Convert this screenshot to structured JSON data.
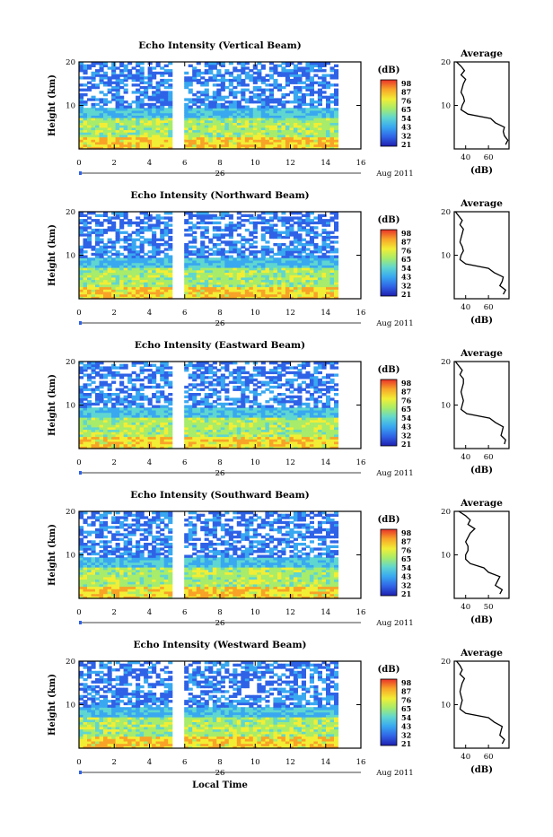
{
  "figure": {
    "xlabel": "Local Time",
    "date_label": "Aug 2011",
    "day_label": "26",
    "ylabel": "Height (km)",
    "unit_label": "(dB)",
    "avg_title": "Average",
    "avg_xlabel": "(dB)"
  },
  "chart_data": [
    {
      "type": "heatmap",
      "title": "Echo Intensity (Vertical Beam)",
      "x_ticks": [
        "0",
        "2",
        "4",
        "6",
        "8",
        "10",
        "12",
        "14",
        "16"
      ],
      "xlim": [
        0,
        16
      ],
      "y_ticks": [
        "10",
        "20"
      ],
      "ylim": [
        0,
        20
      ],
      "data_gap_hours": [
        5.5,
        5.8
      ],
      "data_end_hour": 14.7,
      "colorbar_ticks": [
        "98",
        "87",
        "76",
        "65",
        "54",
        "43",
        "32",
        "21"
      ],
      "colorbar_range": [
        21,
        98
      ],
      "colormap": [
        "#1f1fb0",
        "#2f62e6",
        "#39a8f0",
        "#5fd6d0",
        "#a7ec6a",
        "#f2ee35",
        "#f8a328",
        "#e8322a"
      ],
      "average_profile": {
        "x_ticks": [
          "40",
          "60"
        ],
        "y_ticks": [
          "10",
          "20"
        ],
        "height_km": [
          1,
          2,
          3,
          4,
          5,
          6,
          7,
          8,
          9,
          10,
          11,
          12,
          13,
          14,
          15,
          16,
          17,
          18,
          19,
          20
        ],
        "db": [
          75,
          77,
          74,
          73,
          74,
          66,
          62,
          42,
          36,
          37,
          39,
          38,
          36,
          37,
          38,
          40,
          36,
          39,
          36,
          32
        ]
      }
    },
    {
      "type": "heatmap",
      "title": "Echo Intensity (Northward Beam)",
      "x_ticks": [
        "0",
        "2",
        "4",
        "6",
        "8",
        "10",
        "12",
        "14",
        "16"
      ],
      "xlim": [
        0,
        16
      ],
      "y_ticks": [
        "10",
        "20"
      ],
      "ylim": [
        0,
        20
      ],
      "data_gap_hours": [
        5.5,
        5.8
      ],
      "data_end_hour": 14.7,
      "colorbar_ticks": [
        "98",
        "87",
        "76",
        "65",
        "54",
        "43",
        "32",
        "21"
      ],
      "colorbar_range": [
        21,
        98
      ],
      "colormap": [
        "#1f1fb0",
        "#2f62e6",
        "#39a8f0",
        "#5fd6d0",
        "#a7ec6a",
        "#f2ee35",
        "#f8a328",
        "#e8322a"
      ],
      "average_profile": {
        "x_ticks": [
          "40",
          "60"
        ],
        "y_ticks": [
          "10",
          "20"
        ],
        "height_km": [
          1,
          2,
          3,
          4,
          5,
          6,
          7,
          8,
          9,
          10,
          11,
          12,
          13,
          14,
          15,
          16,
          17,
          18,
          19,
          20
        ],
        "db": [
          73,
          75,
          70,
          72,
          73,
          65,
          60,
          40,
          35,
          36,
          38,
          37,
          35,
          36,
          37,
          38,
          35,
          37,
          34,
          31
        ]
      }
    },
    {
      "type": "heatmap",
      "title": "Echo Intensity (Eastward Beam)",
      "x_ticks": [
        "0",
        "2",
        "4",
        "6",
        "8",
        "10",
        "12",
        "14",
        "16"
      ],
      "xlim": [
        0,
        16
      ],
      "y_ticks": [
        "10",
        "20"
      ],
      "ylim": [
        0,
        20
      ],
      "data_gap_hours": [
        5.5,
        5.8
      ],
      "data_end_hour": 14.7,
      "colorbar_ticks": [
        "98",
        "87",
        "76",
        "65",
        "54",
        "43",
        "32",
        "21"
      ],
      "colorbar_range": [
        21,
        98
      ],
      "colormap": [
        "#1f1fb0",
        "#2f62e6",
        "#39a8f0",
        "#5fd6d0",
        "#a7ec6a",
        "#f2ee35",
        "#f8a328",
        "#e8322a"
      ],
      "average_profile": {
        "x_ticks": [
          "40",
          "60"
        ],
        "y_ticks": [
          "10",
          "20"
        ],
        "height_km": [
          1,
          2,
          3,
          4,
          5,
          6,
          7,
          8,
          9,
          10,
          11,
          12,
          13,
          14,
          15,
          16,
          17,
          18,
          19,
          20
        ],
        "db": [
          74,
          75,
          71,
          72,
          73,
          66,
          61,
          41,
          36,
          37,
          38,
          37,
          36,
          37,
          38,
          38,
          35,
          37,
          34,
          31
        ]
      }
    },
    {
      "type": "heatmap",
      "title": "Echo Intensity (Southward Beam)",
      "x_ticks": [
        "0",
        "2",
        "4",
        "6",
        "8",
        "10",
        "12",
        "14",
        "16"
      ],
      "xlim": [
        0,
        16
      ],
      "y_ticks": [
        "10",
        "20"
      ],
      "ylim": [
        0,
        20
      ],
      "data_gap_hours": [
        5.5,
        5.8
      ],
      "data_end_hour": 14.7,
      "colorbar_ticks": [
        "98",
        "87",
        "76",
        "65",
        "54",
        "43",
        "32",
        "21"
      ],
      "colorbar_range": [
        21,
        98
      ],
      "colormap": [
        "#1f1fb0",
        "#2f62e6",
        "#39a8f0",
        "#5fd6d0",
        "#a7ec6a",
        "#f2ee35",
        "#f8a328",
        "#e8322a"
      ],
      "average_profile": {
        "x_ticks": [
          "40",
          "50"
        ],
        "y_ticks": [
          "10",
          "20"
        ],
        "height_km": [
          1,
          2,
          3,
          4,
          5,
          6,
          7,
          8,
          9,
          10,
          11,
          12,
          13,
          14,
          15,
          16,
          17,
          18,
          19,
          20
        ],
        "db": [
          55,
          56,
          53,
          54,
          55,
          50,
          48,
          42,
          40,
          40,
          41,
          41,
          40,
          41,
          42,
          44,
          41,
          42,
          40,
          37
        ]
      }
    },
    {
      "type": "heatmap",
      "title": "Echo Intensity (Westward Beam)",
      "x_ticks": [
        "0",
        "2",
        "4",
        "6",
        "8",
        "10",
        "12",
        "14",
        "16"
      ],
      "xlim": [
        0,
        16
      ],
      "y_ticks": [
        "10",
        "20"
      ],
      "ylim": [
        0,
        20
      ],
      "data_gap_hours": [
        5.5,
        5.8
      ],
      "data_end_hour": 14.7,
      "colorbar_ticks": [
        "98",
        "87",
        "76",
        "65",
        "54",
        "43",
        "32",
        "21"
      ],
      "colorbar_range": [
        21,
        98
      ],
      "colormap": [
        "#1f1fb0",
        "#2f62e6",
        "#39a8f0",
        "#5fd6d0",
        "#a7ec6a",
        "#f2ee35",
        "#f8a328",
        "#e8322a"
      ],
      "average_profile": {
        "x_ticks": [
          "40",
          "60"
        ],
        "y_ticks": [
          "10",
          "20"
        ],
        "height_km": [
          1,
          2,
          3,
          4,
          5,
          6,
          7,
          8,
          9,
          10,
          11,
          12,
          13,
          14,
          15,
          16,
          17,
          18,
          19,
          20
        ],
        "db": [
          72,
          74,
          70,
          71,
          72,
          65,
          60,
          40,
          35,
          36,
          37,
          36,
          35,
          36,
          37,
          39,
          35,
          37,
          35,
          32
        ]
      }
    }
  ]
}
